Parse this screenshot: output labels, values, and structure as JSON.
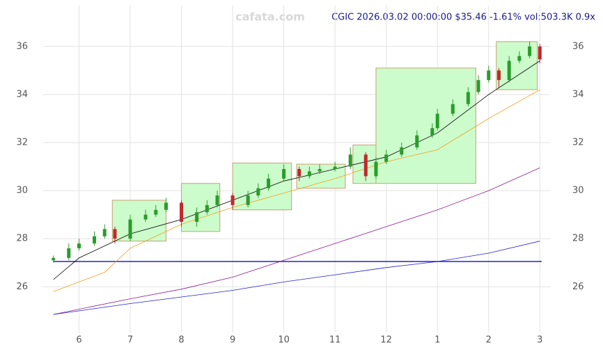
{
  "chart_data": {
    "type": "candlestick",
    "title": "CGIC 2026.03.02 00:00:00 $35.46 -1.61% vol:503.3K 0.9x",
    "watermark": "cafata.com",
    "xlim": [
      5.3,
      15.2
    ],
    "xticks": [
      6,
      7,
      8,
      9,
      10,
      11,
      12,
      {
        "value": 13,
        "label": "1"
      },
      {
        "value": 14,
        "label": "2"
      },
      {
        "value": 15,
        "label": "3"
      }
    ],
    "ylim": [
      24.1,
      37.7
    ],
    "yticks": [
      26,
      28,
      30,
      32,
      34,
      36
    ],
    "grid": true,
    "up_color": "#2a9d2a",
    "down_color": "#c0282e",
    "x": [
      5.5,
      5.8,
      6.0,
      6.3,
      6.5,
      6.7,
      7.0,
      7.3,
      7.5,
      7.7,
      8.0,
      8.3,
      8.5,
      8.7,
      9.0,
      9.3,
      9.5,
      9.7,
      10.0,
      10.3,
      10.5,
      10.7,
      11.0,
      11.3,
      11.6,
      11.8,
      12.0,
      12.3,
      12.6,
      12.9,
      13.0,
      13.3,
      13.6,
      13.8,
      14.0,
      14.2,
      14.4,
      14.6,
      14.8,
      15.0
    ],
    "open": [
      27.1,
      27.2,
      27.6,
      27.8,
      28.1,
      28.4,
      28.0,
      28.8,
      29.0,
      29.2,
      29.5,
      28.7,
      29.1,
      29.4,
      29.8,
      29.4,
      29.8,
      30.1,
      30.5,
      30.9,
      30.6,
      30.8,
      30.9,
      31.0,
      31.5,
      30.6,
      31.2,
      31.5,
      31.8,
      32.3,
      32.6,
      33.2,
      33.6,
      34.1,
      34.6,
      35.0,
      34.6,
      35.4,
      35.6,
      36.0
    ],
    "close": [
      27.2,
      27.6,
      27.8,
      28.1,
      28.4,
      28.0,
      28.8,
      29.0,
      29.2,
      29.5,
      28.7,
      29.1,
      29.4,
      29.8,
      29.4,
      29.8,
      30.1,
      30.5,
      30.9,
      30.6,
      30.8,
      30.9,
      31.0,
      31.5,
      30.6,
      31.2,
      31.5,
      31.8,
      32.3,
      32.6,
      33.2,
      33.6,
      34.1,
      34.6,
      35.0,
      34.6,
      35.4,
      35.6,
      36.0,
      35.46
    ],
    "high": [
      27.3,
      27.8,
      28.0,
      28.3,
      28.6,
      28.5,
      29.0,
      29.2,
      29.4,
      29.7,
      29.6,
      29.3,
      29.6,
      30.0,
      29.9,
      30.0,
      30.3,
      30.7,
      31.1,
      31.0,
      31.0,
      31.1,
      31.2,
      31.8,
      31.6,
      31.4,
      31.7,
      32.0,
      32.5,
      32.8,
      33.4,
      33.8,
      34.3,
      34.8,
      35.2,
      35.1,
      35.6,
      35.8,
      36.2,
      36.1
    ],
    "low": [
      27.0,
      27.1,
      27.5,
      27.7,
      28.0,
      27.8,
      27.9,
      28.7,
      28.9,
      29.1,
      28.5,
      28.5,
      29.0,
      29.3,
      29.2,
      29.3,
      29.7,
      30.0,
      30.4,
      30.4,
      30.5,
      30.7,
      30.8,
      30.9,
      30.4,
      30.5,
      31.1,
      31.4,
      31.7,
      32.2,
      32.5,
      33.1,
      33.5,
      34.0,
      34.5,
      34.3,
      34.5,
      35.3,
      35.5,
      35.3
    ],
    "lines": [
      {
        "color": "#000000",
        "x": [
          5.5,
          6,
          7,
          8,
          9,
          10,
          11,
          12,
          13,
          14,
          15
        ],
        "values": [
          26.3,
          27.2,
          28.2,
          28.8,
          29.6,
          30.4,
          30.9,
          31.4,
          32.4,
          34.0,
          35.4
        ]
      },
      {
        "color": "#f0a020",
        "x": [
          5.5,
          6.5,
          7,
          8,
          9,
          10,
          11,
          12,
          13,
          14,
          15
        ],
        "values": [
          25.8,
          26.6,
          27.6,
          28.6,
          29.3,
          29.9,
          30.5,
          31.2,
          31.7,
          33.0,
          34.2
        ]
      },
      {
        "color": "#8b1a8b",
        "x": [
          5.5,
          7,
          8,
          9,
          10,
          11,
          12,
          13,
          14,
          15
        ],
        "values": [
          24.85,
          25.5,
          25.9,
          26.4,
          27.1,
          27.8,
          28.5,
          29.2,
          30.0,
          30.95
        ]
      },
      {
        "color": "#2020d0",
        "x": [
          5.5,
          7,
          9,
          10,
          11,
          12,
          13,
          14,
          15
        ],
        "values": [
          24.85,
          25.3,
          25.85,
          26.2,
          26.5,
          26.8,
          27.05,
          27.4,
          27.9
        ]
      }
    ],
    "boxes": [
      {
        "x": [
          6.65,
          7.7
        ],
        "y": [
          27.9,
          29.6
        ]
      },
      {
        "x": [
          8.0,
          8.75
        ],
        "y": [
          28.3,
          30.3
        ]
      },
      {
        "x": [
          9.0,
          10.15
        ],
        "y": [
          29.2,
          31.15
        ]
      },
      {
        "x": [
          10.25,
          11.2
        ],
        "y": [
          30.1,
          31.1
        ]
      },
      {
        "x": [
          11.35,
          11.8
        ],
        "y": [
          30.3,
          31.9
        ]
      },
      {
        "x": [
          11.8,
          13.75
        ],
        "y": [
          30.3,
          35.1
        ]
      },
      {
        "x": [
          14.15,
          14.95
        ],
        "y": [
          34.2,
          36.2
        ]
      }
    ],
    "support": 27.05
  }
}
